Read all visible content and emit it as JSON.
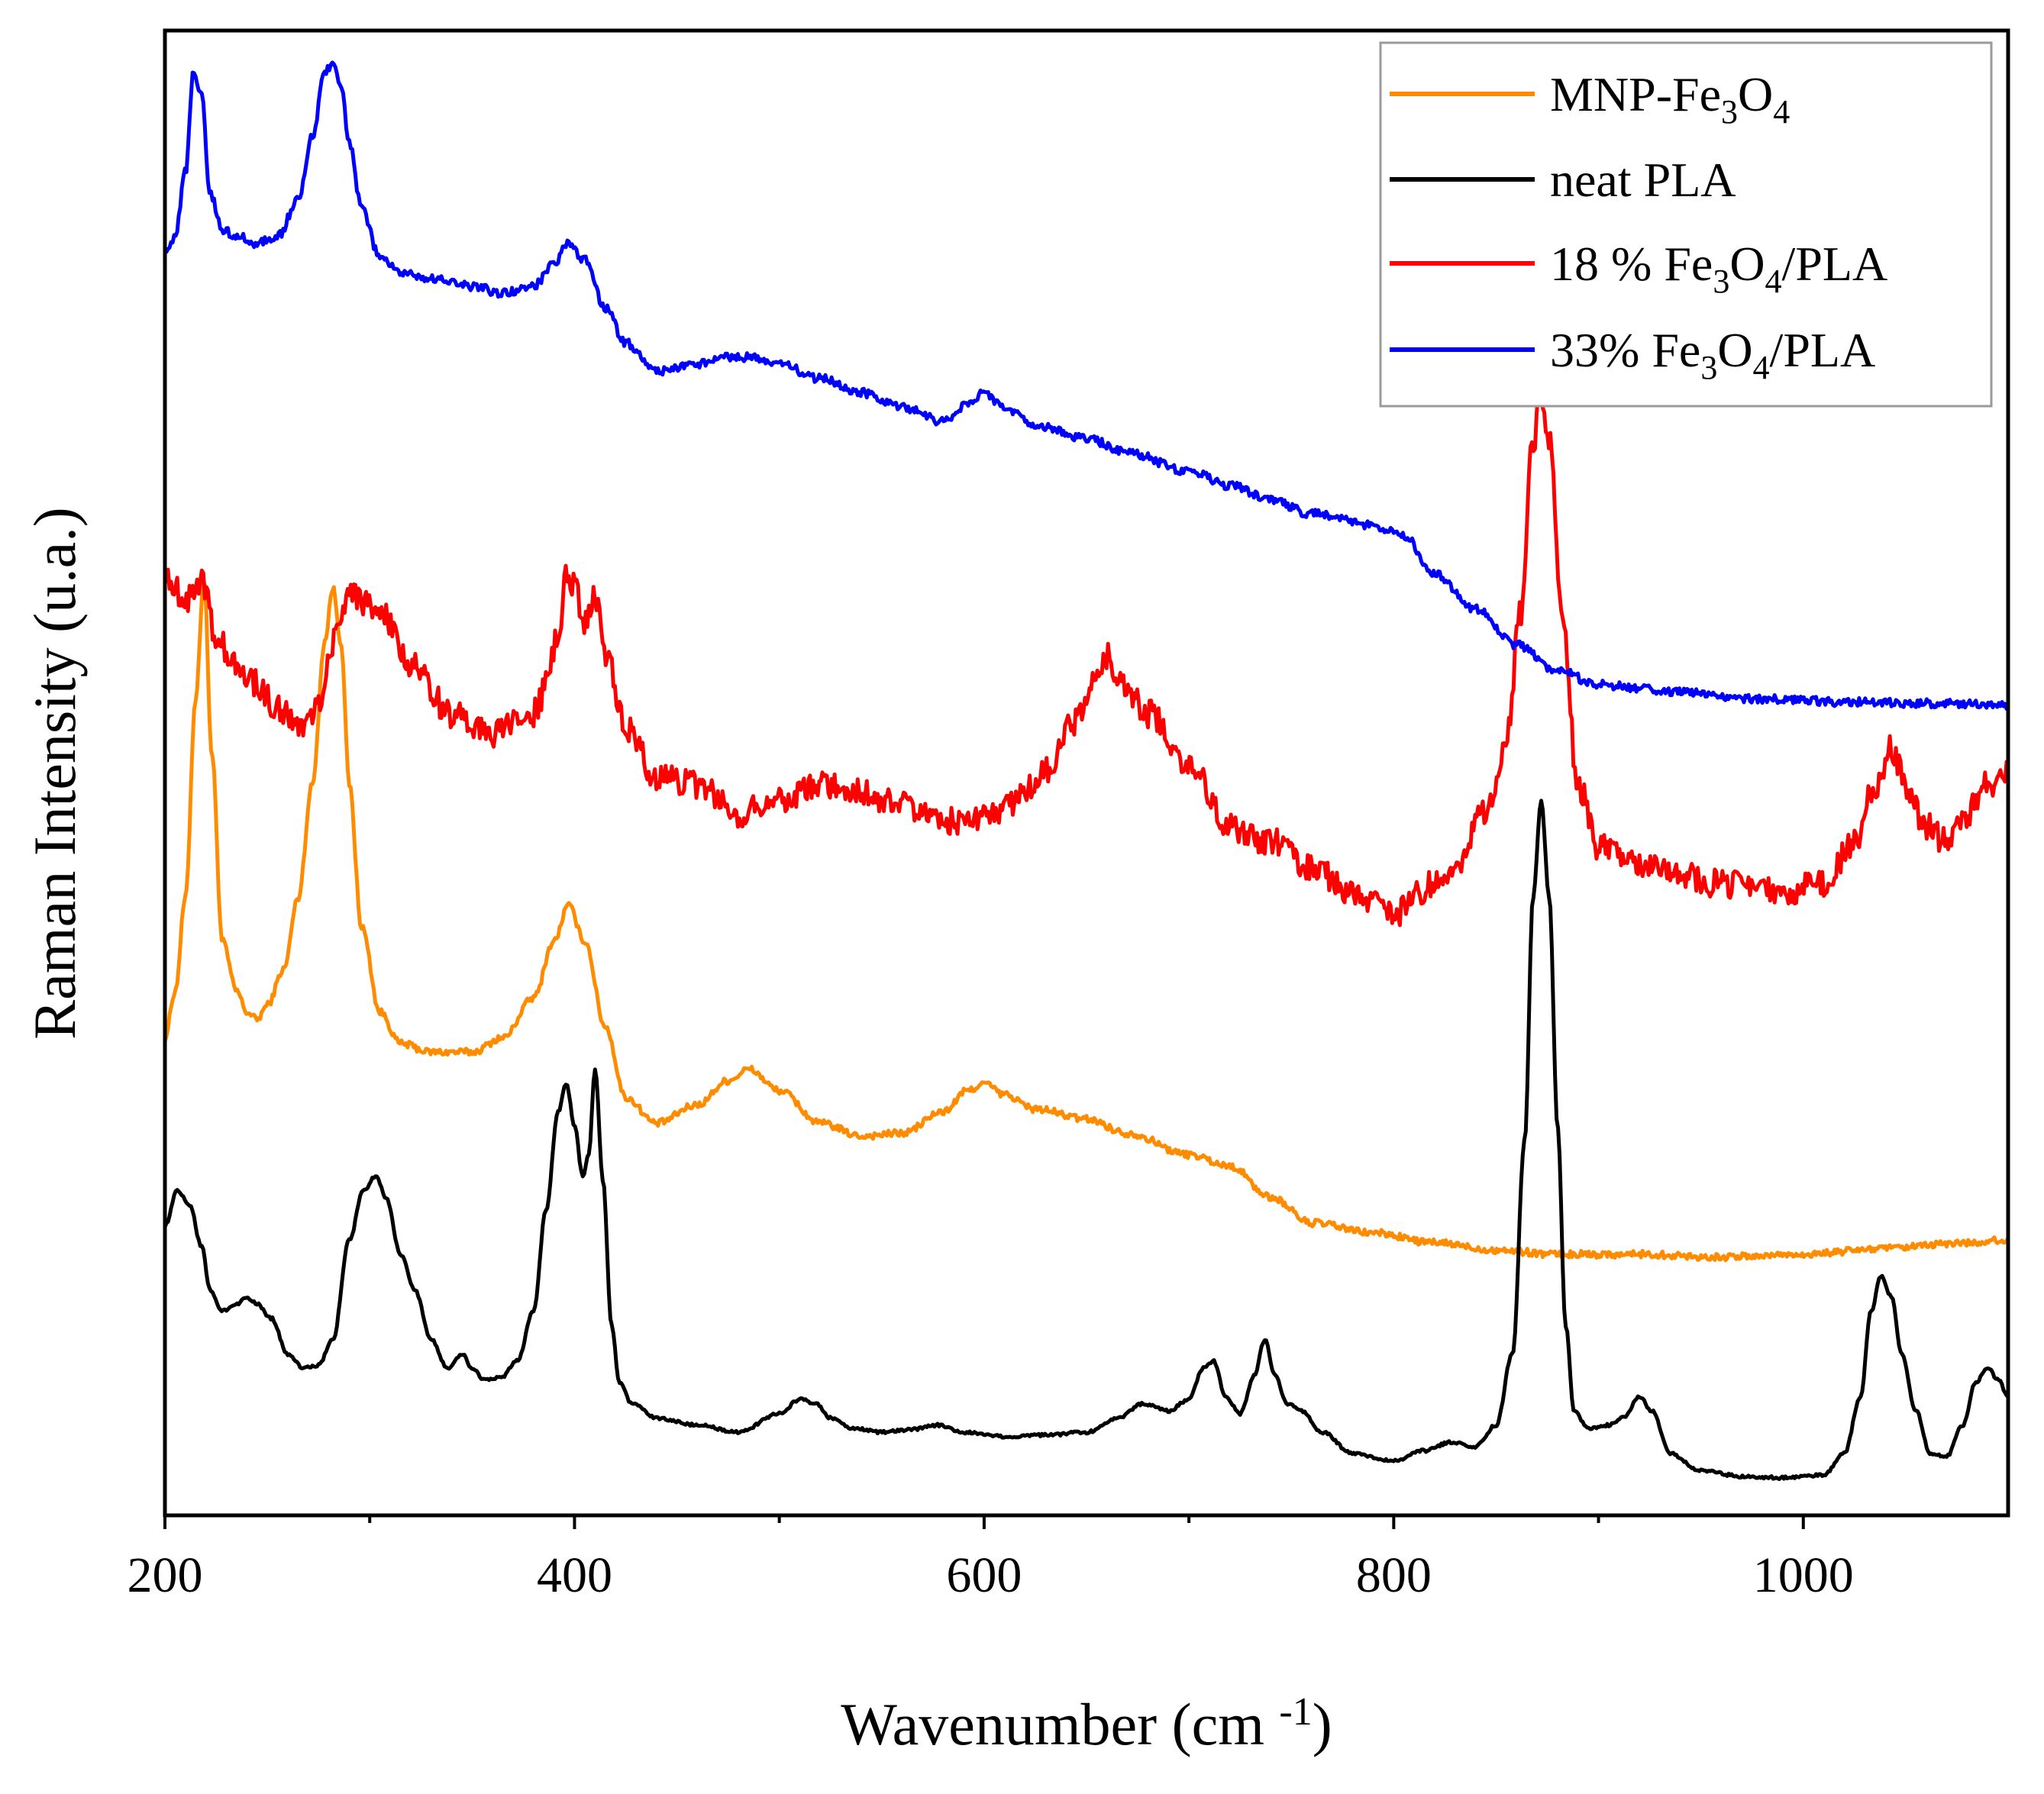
{
  "chart_data": {
    "type": "line",
    "title": "",
    "xlabel": {
      "text": "Wavenumber (cm ",
      "sup": "-1",
      "close": ")"
    },
    "ylabel": "Raman Intensity (u.a.)",
    "xlim": [
      200,
      1100
    ],
    "ylim": [
      0,
      1
    ],
    "y_ticks_shown": false,
    "x_ticks": [
      200,
      400,
      600,
      800,
      1000
    ],
    "x_tick_labels": [
      "200",
      "400",
      "600",
      "800",
      "1000"
    ],
    "grid": false,
    "legend_position": "top-right",
    "series": [
      {
        "name": "MNP-Fe3O4",
        "legend": [
          {
            "t": "MNP-Fe"
          },
          {
            "t": "3",
            "sub": true
          },
          {
            "t": "O"
          },
          {
            "t": "4",
            "sub": true
          }
        ],
        "color": "#FF8C00",
        "noise": 0.0025,
        "x": [
          200,
          205,
          210,
          215,
          219,
          223,
          228,
          235,
          240,
          245,
          250,
          258,
          265,
          272,
          278,
          282,
          286,
          290,
          296,
          305,
          315,
          330,
          350,
          365,
          380,
          390,
          397,
          405,
          415,
          425,
          440,
          460,
          475,
          485,
          500,
          520,
          540,
          560,
          580,
          592,
          600,
          610,
          625,
          650,
          670,
          700,
          720,
          740,
          760,
          790,
          820,
          850,
          880,
          920,
          960,
          1000,
          1040,
          1080,
          1100
        ],
        "y": [
          0.322,
          0.355,
          0.42,
          0.56,
          0.645,
          0.52,
          0.39,
          0.355,
          0.34,
          0.335,
          0.345,
          0.37,
          0.42,
          0.5,
          0.6,
          0.638,
          0.6,
          0.5,
          0.4,
          0.34,
          0.318,
          0.312,
          0.312,
          0.322,
          0.35,
          0.39,
          0.415,
          0.39,
          0.33,
          0.28,
          0.262,
          0.275,
          0.292,
          0.3,
          0.285,
          0.262,
          0.253,
          0.255,
          0.27,
          0.285,
          0.29,
          0.282,
          0.272,
          0.265,
          0.255,
          0.24,
          0.232,
          0.21,
          0.192,
          0.185,
          0.178,
          0.173,
          0.17,
          0.17,
          0.168,
          0.17,
          0.174,
          0.178,
          0.18
        ]
      },
      {
        "name": "neat PLA",
        "legend": [
          {
            "t": "neat PLA"
          }
        ],
        "color": "#000000",
        "noise": 0.001,
        "x": [
          200,
          206,
          212,
          218,
          222,
          228,
          235,
          240,
          245,
          252,
          260,
          268,
          275,
          282,
          290,
          297,
          303,
          308,
          315,
          322,
          330,
          338,
          345,
          350,
          356,
          364,
          372,
          380,
          386,
          392,
          396,
          400,
          404,
          407,
          410,
          414,
          418,
          422,
          428,
          440,
          460,
          480,
          500,
          510,
          518,
          525,
          535,
          550,
          565,
          578,
          590,
          610,
          630,
          650,
          665,
          678,
          690,
          700,
          707,
          712,
          718,
          725,
          732,
          737,
          742,
          748,
          755,
          765,
          780,
          800,
          815,
          828,
          840,
          850,
          858,
          864,
          868,
          872,
          876,
          880,
          884,
          888,
          895,
          905,
          912,
          920,
          926,
          935,
          950,
          970,
          990,
          1010,
          1020,
          1028,
          1033,
          1038,
          1043,
          1048,
          1055,
          1062,
          1070,
          1078,
          1084,
          1090,
          1095,
          1100
        ],
        "y": [
          0.19,
          0.215,
          0.205,
          0.175,
          0.145,
          0.13,
          0.135,
          0.14,
          0.135,
          0.125,
          0.1,
          0.09,
          0.092,
          0.11,
          0.18,
          0.215,
          0.225,
          0.21,
          0.17,
          0.145,
          0.11,
          0.09,
          0.1,
          0.09,
          0.082,
          0.083,
          0.095,
          0.13,
          0.2,
          0.27,
          0.29,
          0.26,
          0.225,
          0.24,
          0.3,
          0.22,
          0.12,
          0.08,
          0.065,
          0.055,
          0.05,
          0.045,
          0.058,
          0.068,
          0.065,
          0.055,
          0.048,
          0.045,
          0.047,
          0.05,
          0.045,
          0.042,
          0.043,
          0.045,
          0.055,
          0.065,
          0.06,
          0.068,
          0.09,
          0.095,
          0.07,
          0.058,
          0.085,
          0.11,
          0.085,
          0.065,
          0.06,
          0.045,
          0.03,
          0.025,
          0.032,
          0.038,
          0.035,
          0.05,
          0.1,
          0.25,
          0.42,
          0.488,
          0.42,
          0.26,
          0.12,
          0.06,
          0.048,
          0.05,
          0.055,
          0.07,
          0.06,
          0.03,
          0.018,
          0.014,
          0.013,
          0.015,
          0.03,
          0.07,
          0.13,
          0.155,
          0.14,
          0.1,
          0.06,
          0.03,
          0.028,
          0.05,
          0.08,
          0.09,
          0.082,
          0.07
        ]
      },
      {
        "name": "18 % Fe3O4/PLA",
        "legend": [
          {
            "t": "18 % Fe"
          },
          {
            "t": "3",
            "sub": true
          },
          {
            "t": "O"
          },
          {
            "t": "4",
            "sub": true
          },
          {
            "t": "/PLA"
          }
        ],
        "color": "#FF0000",
        "noise": 0.01,
        "x": [
          200,
          210,
          218,
          225,
          240,
          255,
          265,
          275,
          282,
          290,
          305,
          320,
          340,
          360,
          380,
          392,
          396,
          400,
          404,
          410,
          416,
          425,
          440,
          460,
          480,
          500,
          520,
          540,
          560,
          580,
          600,
          615,
          630,
          645,
          652,
          660,
          668,
          680,
          700,
          720,
          740,
          760,
          780,
          800,
          820,
          830,
          845,
          855,
          862,
          868,
          872,
          876,
          882,
          890,
          900,
          930,
          960,
          990,
          1010,
          1025,
          1035,
          1043,
          1050,
          1060,
          1070,
          1080,
          1090,
          1100
        ],
        "y": [
          0.648,
          0.63,
          0.645,
          0.6,
          0.575,
          0.555,
          0.54,
          0.555,
          0.6,
          0.635,
          0.62,
          0.585,
          0.55,
          0.535,
          0.55,
          0.6,
          0.65,
          0.64,
          0.615,
          0.63,
          0.59,
          0.54,
          0.505,
          0.5,
          0.48,
          0.49,
          0.5,
          0.495,
          0.485,
          0.475,
          0.475,
          0.488,
          0.51,
          0.545,
          0.57,
          0.59,
          0.57,
          0.55,
          0.515,
          0.47,
          0.46,
          0.44,
          0.425,
          0.41,
          0.43,
          0.445,
          0.48,
          0.53,
          0.62,
          0.74,
          0.775,
          0.74,
          0.62,
          0.5,
          0.455,
          0.44,
          0.43,
          0.425,
          0.43,
          0.46,
          0.5,
          0.525,
          0.5,
          0.47,
          0.46,
          0.48,
          0.5,
          0.51
        ]
      },
      {
        "name": "33% Fe3O4/PLA",
        "legend": [
          {
            "t": "33% Fe"
          },
          {
            "t": "3",
            "sub": true
          },
          {
            "t": "O"
          },
          {
            "t": "4",
            "sub": true
          },
          {
            "t": "/PLA"
          }
        ],
        "color": "#0000FF",
        "noise": 0.003,
        "x": [
          200,
          205,
          210,
          214,
          218,
          222,
          228,
          235,
          245,
          255,
          265,
          272,
          278,
          282,
          286,
          290,
          296,
          305,
          315,
          330,
          350,
          365,
          380,
          390,
          397,
          405,
          415,
          425,
          440,
          460,
          475,
          485,
          500,
          520,
          540,
          560,
          580,
          592,
          600,
          610,
          625,
          650,
          670,
          700,
          720,
          740,
          760,
          790,
          805,
          820,
          840,
          860,
          880,
          900,
          940,
          980,
          1020,
          1060,
          1100
        ],
        "y": [
          0.875,
          0.885,
          0.93,
          1.0,
          0.985,
          0.915,
          0.89,
          0.885,
          0.88,
          0.885,
          0.91,
          0.955,
          1.0,
          1.007,
          0.99,
          0.95,
          0.905,
          0.87,
          0.86,
          0.855,
          0.85,
          0.845,
          0.85,
          0.865,
          0.88,
          0.868,
          0.835,
          0.81,
          0.79,
          0.795,
          0.8,
          0.8,
          0.795,
          0.785,
          0.775,
          0.765,
          0.755,
          0.767,
          0.775,
          0.765,
          0.752,
          0.743,
          0.733,
          0.72,
          0.71,
          0.7,
          0.69,
          0.682,
          0.675,
          0.648,
          0.623,
          0.598,
          0.58,
          0.57,
          0.565,
          0.56,
          0.558,
          0.557,
          0.556
        ]
      }
    ]
  }
}
